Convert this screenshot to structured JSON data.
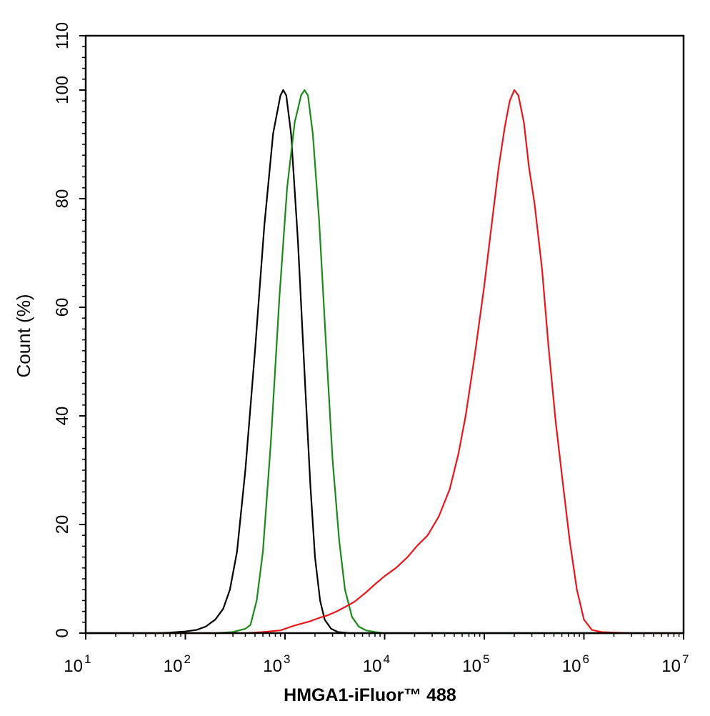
{
  "chart_data": {
    "type": "line",
    "xlabel": "HMGA1-iFluor™ 488",
    "ylabel": "Count  (%)",
    "xscale": "log",
    "xlim": [
      10,
      10000000
    ],
    "ylim": [
      0,
      110
    ],
    "x_ticks": [
      {
        "base": "10",
        "exp": "1",
        "value": 10
      },
      {
        "base": "10",
        "exp": "2",
        "value": 100
      },
      {
        "base": "10",
        "exp": "3",
        "value": 1000
      },
      {
        "base": "10",
        "exp": "4",
        "value": 10000
      },
      {
        "base": "10",
        "exp": "5",
        "value": 100000
      },
      {
        "base": "10",
        "exp": "6",
        "value": 1000000
      },
      {
        "base": "10",
        "exp": "7",
        "value": 10000000
      }
    ],
    "y_ticks": [
      {
        "label": "0",
        "value": 0
      },
      {
        "label": "20",
        "value": 20
      },
      {
        "label": "40",
        "value": 40
      },
      {
        "label": "60",
        "value": 60
      },
      {
        "label": "80",
        "value": 80
      },
      {
        "label": "100",
        "value": 100
      },
      {
        "label": "110",
        "value": 110
      }
    ],
    "grid": false,
    "legend": "none",
    "series": [
      {
        "color": "#000000",
        "points": [
          [
            10,
            0
          ],
          [
            50,
            0
          ],
          [
            70,
            0.1
          ],
          [
            100,
            0.3
          ],
          [
            130,
            0.6
          ],
          [
            160,
            1.2
          ],
          [
            200,
            2.5
          ],
          [
            240,
            4.5
          ],
          [
            280,
            8
          ],
          [
            330,
            15
          ],
          [
            400,
            30
          ],
          [
            500,
            52
          ],
          [
            620,
            75
          ],
          [
            760,
            92
          ],
          [
            900,
            99
          ],
          [
            960,
            100
          ],
          [
            1030,
            99
          ],
          [
            1150,
            92
          ],
          [
            1350,
            72
          ],
          [
            1600,
            45
          ],
          [
            1800,
            27
          ],
          [
            2000,
            14
          ],
          [
            2250,
            6
          ],
          [
            2500,
            2.5
          ],
          [
            2900,
            0.8
          ],
          [
            3400,
            0.2
          ],
          [
            4500,
            0
          ],
          [
            10000000,
            0
          ]
        ]
      },
      {
        "color": "#1a8a1a",
        "points": [
          [
            10,
            0
          ],
          [
            200,
            0
          ],
          [
            300,
            0.2
          ],
          [
            400,
            0.8
          ],
          [
            450,
            1.5
          ],
          [
            520,
            6
          ],
          [
            600,
            15
          ],
          [
            720,
            35
          ],
          [
            880,
            62
          ],
          [
            1050,
            82
          ],
          [
            1250,
            94
          ],
          [
            1450,
            99
          ],
          [
            1570,
            100
          ],
          [
            1700,
            99
          ],
          [
            1900,
            92
          ],
          [
            2200,
            76
          ],
          [
            2600,
            52
          ],
          [
            3000,
            32
          ],
          [
            3500,
            17
          ],
          [
            4000,
            8
          ],
          [
            4700,
            3
          ],
          [
            5500,
            1.2
          ],
          [
            6500,
            0.5
          ],
          [
            8000,
            0.2
          ],
          [
            10000,
            0
          ],
          [
            10000000,
            0
          ]
        ]
      },
      {
        "color": "#e8161b",
        "points": [
          [
            10,
            0
          ],
          [
            400,
            0
          ],
          [
            600,
            0.2
          ],
          [
            900,
            0.5
          ],
          [
            1200,
            1.3
          ],
          [
            1500,
            1.8
          ],
          [
            1800,
            2.2
          ],
          [
            2200,
            2.8
          ],
          [
            2700,
            3.3
          ],
          [
            3300,
            4
          ],
          [
            4000,
            4.8
          ],
          [
            5000,
            5.8
          ],
          [
            6500,
            7.5
          ],
          [
            8000,
            9
          ],
          [
            10000,
            10.5
          ],
          [
            13000,
            12
          ],
          [
            17000,
            14
          ],
          [
            21000,
            16
          ],
          [
            27000,
            18
          ],
          [
            35000,
            21.5
          ],
          [
            45000,
            26.5
          ],
          [
            55000,
            33
          ],
          [
            65000,
            40
          ],
          [
            80000,
            51
          ],
          [
            100000,
            64
          ],
          [
            120000,
            76
          ],
          [
            140000,
            86
          ],
          [
            160000,
            93
          ],
          [
            180000,
            98
          ],
          [
            200000,
            100
          ],
          [
            220000,
            99
          ],
          [
            250000,
            94
          ],
          [
            280000,
            86
          ],
          [
            320000,
            79
          ],
          [
            380000,
            67
          ],
          [
            440000,
            53
          ],
          [
            520000,
            39
          ],
          [
            620000,
            27
          ],
          [
            720000,
            17
          ],
          [
            850000,
            8
          ],
          [
            1000000,
            2.5
          ],
          [
            1200000,
            0.6
          ],
          [
            1500000,
            0.2
          ],
          [
            2000000,
            0.1
          ],
          [
            3000000,
            0
          ],
          [
            10000000,
            0
          ]
        ]
      }
    ]
  }
}
